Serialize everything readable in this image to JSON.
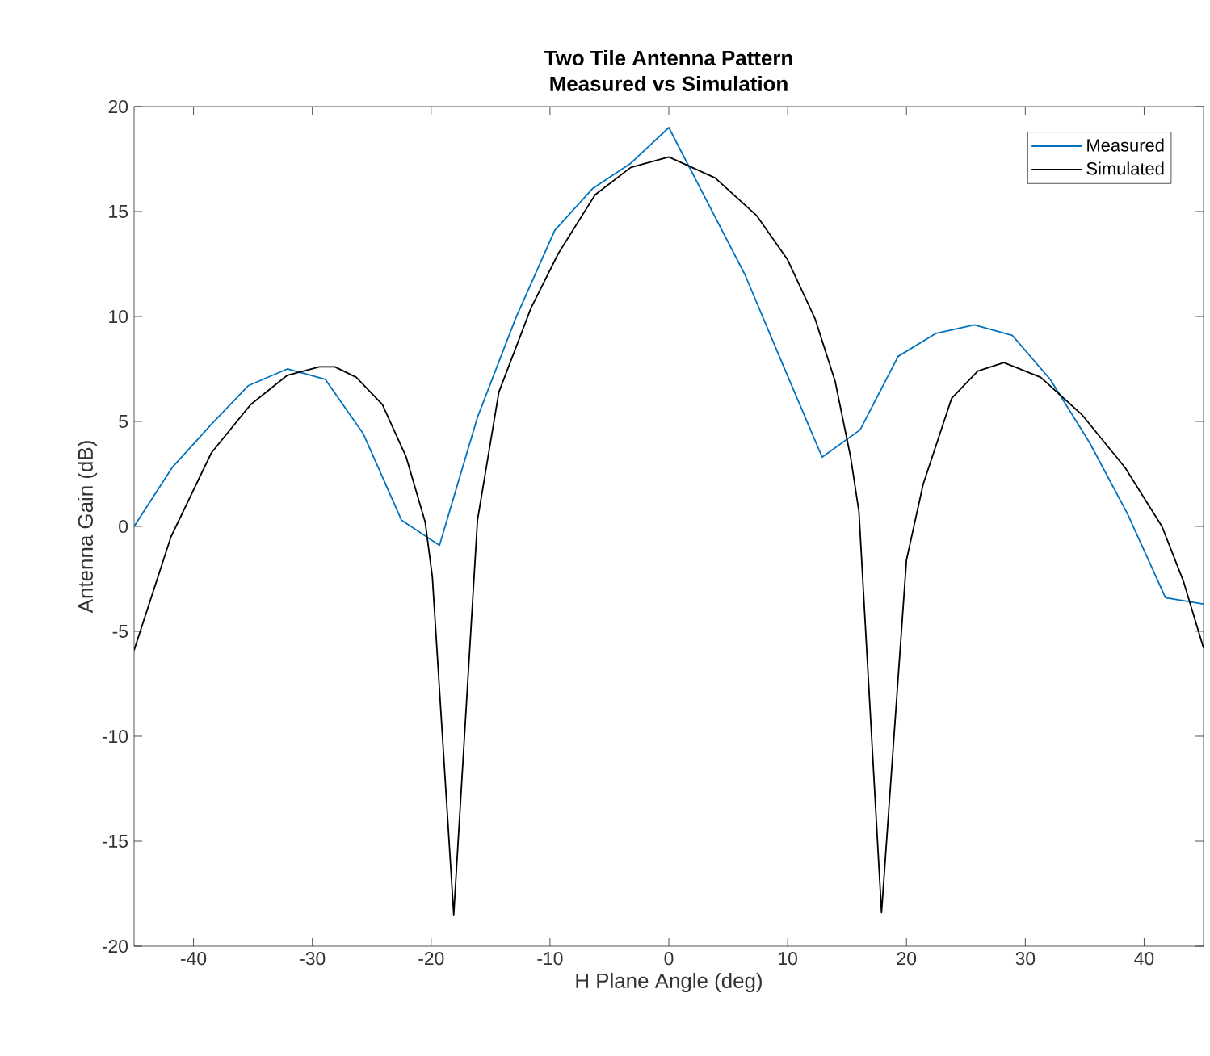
{
  "chart_data": {
    "type": "line",
    "title": "Two Tile Antenna Pattern",
    "subtitle": "Measured vs Simulation",
    "xlabel": "H Plane Angle (deg)",
    "ylabel": "Antenna Gain (dB)",
    "xlim": [
      -45,
      45
    ],
    "ylim": [
      -20,
      20
    ],
    "xticks": [
      -40,
      -30,
      -20,
      -10,
      0,
      10,
      20,
      30,
      40
    ],
    "yticks": [
      -20,
      -15,
      -10,
      -5,
      0,
      5,
      10,
      15,
      20
    ],
    "grid": false,
    "legend": "top right",
    "series": [
      {
        "name": "Measured",
        "color": "#0072bd",
        "x": [
          -45,
          -41.8,
          -38.6,
          -35.4,
          -32.1,
          -28.9,
          -25.7,
          -22.5,
          -19.3,
          -16.1,
          -12.9,
          -9.6,
          -6.4,
          -3.2,
          0,
          3.2,
          6.4,
          9.6,
          12.9,
          16.1,
          19.3,
          22.5,
          25.7,
          28.9,
          32.1,
          35.4,
          38.6,
          41.8,
          45
        ],
        "values": [
          0,
          2.8,
          4.8,
          6.7,
          7.5,
          7.0,
          4.4,
          0.3,
          -0.9,
          5.2,
          9.9,
          14.1,
          16.1,
          17.3,
          19.0,
          15.5,
          12.0,
          7.7,
          3.3,
          4.6,
          8.1,
          9.2,
          9.6,
          9.1,
          7.0,
          4.0,
          0.6,
          -3.4,
          -3.7
        ]
      },
      {
        "name": "Simulated",
        "color": "#000000",
        "x": [
          -45,
          -41.9,
          -38.5,
          -35.2,
          -32.1,
          -29.4,
          -28.1,
          -26.3,
          -24.1,
          -22.1,
          -20.5,
          -19.9,
          -18.1,
          -16.1,
          -14.3,
          -11.6,
          -9.3,
          -6.2,
          -3.2,
          0,
          3.9,
          7.4,
          10.0,
          12.3,
          14.0,
          15.3,
          16.0,
          17.9,
          20.0,
          21.4,
          23.8,
          26.0,
          28.2,
          31.3,
          34.8,
          38.4,
          41.5,
          43.3,
          45
        ],
        "values": [
          -5.9,
          -0.5,
          3.5,
          5.8,
          7.2,
          7.6,
          7.6,
          7.1,
          5.8,
          3.3,
          0.2,
          -2.4,
          -18.5,
          0.3,
          6.4,
          10.4,
          13.0,
          15.8,
          17.1,
          17.6,
          16.6,
          14.8,
          12.7,
          9.9,
          6.9,
          3.3,
          0.7,
          -18.4,
          -1.6,
          2.0,
          6.1,
          7.4,
          7.8,
          7.1,
          5.3,
          2.8,
          0.0,
          -2.6,
          -5.8
        ]
      }
    ]
  }
}
